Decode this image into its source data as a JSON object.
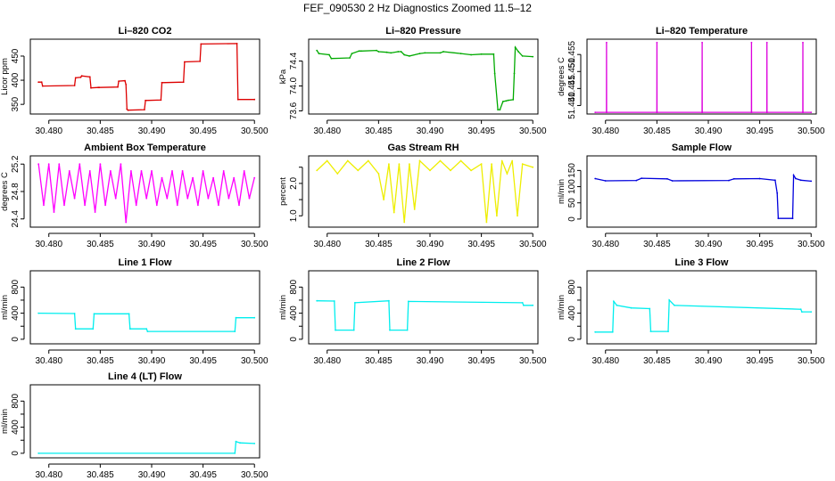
{
  "figure": {
    "title": "FEF_090530  2 Hz Diagnostics Zoomed 11.5–12"
  },
  "chart_data": [
    {
      "type": "line",
      "title": "Li–820 CO2",
      "ylabel": "Licor ppm",
      "color": "#dd0000",
      "xlim": [
        30.4782,
        30.5005
      ],
      "ylim": [
        330,
        485
      ],
      "xticks": [
        30.48,
        30.485,
        30.49,
        30.495,
        30.5
      ],
      "xtick_labels": [
        "30.480",
        "30.485",
        "30.490",
        "30.495",
        "30.500"
      ],
      "yticks": [
        350,
        400,
        450
      ],
      "ytick_labels": [
        "350",
        "400",
        "450"
      ],
      "series": [
        {
          "x": [
            30.479,
            30.4793,
            30.4794,
            30.4825,
            30.4826,
            30.4831,
            30.4832,
            30.484,
            30.4841,
            30.4848,
            30.4849,
            30.4867,
            30.4868,
            30.4874,
            30.4875,
            30.4876,
            30.4877,
            30.4893,
            30.4894,
            30.4909,
            30.491,
            30.4931,
            30.4932,
            30.4947,
            30.4948,
            30.4983,
            30.4984,
            30.5
          ],
          "y": [
            396,
            396,
            388,
            389,
            405,
            406,
            409,
            407,
            384,
            385,
            385,
            386,
            398,
            399,
            391,
            340,
            338,
            339,
            358,
            359,
            395,
            396,
            438,
            439,
            475,
            476,
            360,
            360
          ]
        }
      ]
    },
    {
      "type": "line",
      "title": "Li–820 Pressure",
      "ylabel": "kPa",
      "color": "#00aa00",
      "xlim": [
        30.4782,
        30.5005
      ],
      "ylim": [
        73.55,
        74.75
      ],
      "xticks": [
        30.48,
        30.485,
        30.49,
        30.495,
        30.5
      ],
      "xtick_labels": [
        "30.480",
        "30.485",
        "30.490",
        "30.495",
        "30.500"
      ],
      "yticks": [
        73.6,
        74.0,
        74.4
      ],
      "ytick_labels": [
        "73.6",
        "74.0",
        "74.4"
      ],
      "series": [
        {
          "x": [
            30.479,
            30.4792,
            30.4802,
            30.4804,
            30.4822,
            30.4824,
            30.4831,
            30.4833,
            30.4848,
            30.485,
            30.4858,
            30.4862,
            30.4869,
            30.4872,
            30.4875,
            30.488,
            30.489,
            30.4895,
            30.491,
            30.4913,
            30.493,
            30.494,
            30.495,
            30.4962,
            30.4963,
            30.4966,
            30.4968,
            30.4971,
            30.4974,
            30.4976,
            30.4981,
            30.4982,
            30.4983,
            30.4986,
            30.499,
            30.5
          ],
          "y": [
            74.57,
            74.52,
            74.5,
            74.44,
            74.45,
            74.52,
            74.56,
            74.56,
            74.57,
            74.55,
            74.54,
            74.53,
            74.55,
            74.55,
            74.5,
            74.48,
            74.52,
            74.53,
            74.53,
            74.55,
            74.52,
            74.5,
            74.51,
            74.51,
            74.2,
            73.62,
            73.62,
            73.75,
            73.76,
            73.77,
            73.78,
            74.2,
            74.62,
            74.55,
            74.48,
            74.47
          ]
        }
      ]
    },
    {
      "type": "line",
      "title": "Li–820 Temperature",
      "ylabel": "degrees C",
      "color": "#dd00dd",
      "xlim": [
        30.4782,
        30.5005
      ],
      "ylim": [
        51.4375,
        51.4595
      ],
      "xticks": [
        30.48,
        30.485,
        30.49,
        30.495,
        30.5
      ],
      "xtick_labels": [
        "30.480",
        "30.485",
        "30.490",
        "30.495",
        "30.500"
      ],
      "yticks": [
        51.44,
        51.445,
        51.45,
        51.455
      ],
      "ytick_labels": [
        "51.440",
        "51.445",
        "51.450",
        "51.455"
      ],
      "series": [
        {
          "x": [
            30.479,
            30.48009,
            30.4801,
            30.48011,
            30.48499,
            30.485,
            30.48501,
            30.48939,
            30.4894,
            30.48941,
            30.49419,
            30.4942,
            30.49421,
            30.49569,
            30.4957,
            30.49571,
            30.49919,
            30.4992,
            30.49921,
            30.5
          ],
          "y": [
            51.438,
            51.438,
            51.4585,
            51.438,
            51.438,
            51.4585,
            51.438,
            51.438,
            51.4585,
            51.438,
            51.438,
            51.4585,
            51.438,
            51.438,
            51.4585,
            51.438,
            51.438,
            51.4585,
            51.438,
            51.438
          ]
        }
      ]
    },
    {
      "type": "line",
      "title": "Ambient Box Temperature",
      "ylabel": "degrees C",
      "color": "#ff00ff",
      "xlim": [
        30.4782,
        30.5005
      ],
      "ylim": [
        24.28,
        25.32
      ],
      "xticks": [
        30.48,
        30.485,
        30.49,
        30.495,
        30.5
      ],
      "xtick_labels": [
        "30.480",
        "30.485",
        "30.490",
        "30.495",
        "30.500"
      ],
      "yticks": [
        24.4,
        24.8,
        25.2
      ],
      "ytick_labels": [
        "24.4",
        "24.8",
        "25.2"
      ],
      "series": [
        {
          "x": [
            30.479,
            30.4795,
            30.48,
            30.4805,
            30.481,
            30.4815,
            30.482,
            30.4825,
            30.483,
            30.4835,
            30.484,
            30.4845,
            30.485,
            30.4855,
            30.486,
            30.4865,
            30.487,
            30.4875,
            30.488,
            30.4885,
            30.489,
            30.4895,
            30.49,
            30.4905,
            30.491,
            30.4915,
            30.492,
            30.4925,
            30.493,
            30.4935,
            30.494,
            30.4945,
            30.495,
            30.4955,
            30.496,
            30.4965,
            30.497,
            30.4975,
            30.498,
            30.4985,
            30.499,
            30.4995,
            30.5
          ],
          "y": [
            25.2,
            24.6,
            25.2,
            24.5,
            25.2,
            24.6,
            25.1,
            24.7,
            25.2,
            24.6,
            25.1,
            24.5,
            25.2,
            24.6,
            25.1,
            24.7,
            25.2,
            24.35,
            25.1,
            24.6,
            25.1,
            24.7,
            25.1,
            24.6,
            25.0,
            24.7,
            25.1,
            24.6,
            25.1,
            24.7,
            25.0,
            24.6,
            25.1,
            24.7,
            25.0,
            24.6,
            25.1,
            24.7,
            25.0,
            24.6,
            25.1,
            24.7,
            25.0
          ]
        }
      ]
    },
    {
      "type": "line",
      "title": "Gas Stream RH",
      "ylabel": "percent",
      "color": "#eeee00",
      "xlim": [
        30.4782,
        30.5005
      ],
      "ylim": [
        0.65,
        2.85
      ],
      "xticks": [
        30.48,
        30.485,
        30.49,
        30.495,
        30.5
      ],
      "xtick_labels": [
        "30.480",
        "30.485",
        "30.490",
        "30.495",
        "30.500"
      ],
      "yticks": [
        1.0,
        1.5,
        2.0,
        2.5
      ],
      "ytick_labels": [
        "1.0",
        "",
        "2.0",
        ""
      ],
      "series": [
        {
          "x": [
            30.479,
            30.48,
            30.481,
            30.482,
            30.483,
            30.484,
            30.485,
            30.4855,
            30.486,
            30.4865,
            30.487,
            30.4875,
            30.488,
            30.4885,
            30.489,
            30.49,
            30.491,
            30.492,
            30.493,
            30.494,
            30.495,
            30.4955,
            30.496,
            30.4965,
            30.497,
            30.4975,
            30.498,
            30.4985,
            30.499,
            30.5
          ],
          "y": [
            2.4,
            2.7,
            2.3,
            2.7,
            2.4,
            2.7,
            2.3,
            1.5,
            2.6,
            1.1,
            2.6,
            0.8,
            2.6,
            1.2,
            2.7,
            2.4,
            2.7,
            2.4,
            2.7,
            2.4,
            2.6,
            0.8,
            2.6,
            1.0,
            2.7,
            2.3,
            2.7,
            1.0,
            2.6,
            2.5
          ]
        }
      ]
    },
    {
      "type": "line",
      "title": "Sample Flow",
      "ylabel": "ml/min",
      "color": "#0000dd",
      "xlim": [
        30.4782,
        30.5005
      ],
      "ylim": [
        -25,
        195
      ],
      "xticks": [
        30.48,
        30.485,
        30.49,
        30.495,
        30.5
      ],
      "xtick_labels": [
        "30.480",
        "30.485",
        "30.490",
        "30.495",
        "30.500"
      ],
      "yticks": [
        0,
        50,
        100,
        150
      ],
      "ytick_labels": [
        "0",
        "50",
        "100",
        "150"
      ],
      "series": [
        {
          "x": [
            30.479,
            30.48,
            30.483,
            30.4835,
            30.486,
            30.4865,
            30.492,
            30.4925,
            30.495,
            30.4965,
            30.4967,
            30.4968,
            30.4982,
            30.4983,
            30.4985,
            30.499,
            30.5
          ],
          "y": [
            125,
            118,
            119,
            126,
            124,
            118,
            119,
            124,
            125,
            120,
            80,
            2,
            2,
            135,
            125,
            120,
            117
          ]
        }
      ]
    },
    {
      "type": "line",
      "title": "Line 1 Flow",
      "ylabel": "ml/min",
      "color": "#00eeee",
      "xlim": [
        30.4782,
        30.5005
      ],
      "ylim": [
        -70,
        1050
      ],
      "xticks": [
        30.48,
        30.485,
        30.49,
        30.495,
        30.5
      ],
      "xtick_labels": [
        "30.480",
        "30.485",
        "30.490",
        "30.495",
        "30.500"
      ],
      "yticks": [
        0,
        200,
        400,
        600,
        800
      ],
      "ytick_labels": [
        "0",
        "",
        "400",
        "",
        "800"
      ],
      "series": [
        {
          "x": [
            30.479,
            30.4825,
            30.4826,
            30.4843,
            30.4844,
            30.4878,
            30.4879,
            30.4895,
            30.4896,
            30.4981,
            30.4982,
            30.5
          ],
          "y": [
            400,
            395,
            160,
            160,
            390,
            390,
            160,
            160,
            120,
            120,
            330,
            330
          ]
        }
      ]
    },
    {
      "type": "line",
      "title": "Line 2 Flow",
      "ylabel": "ml/min",
      "color": "#00eeee",
      "xlim": [
        30.4782,
        30.5005
      ],
      "ylim": [
        -70,
        1050
      ],
      "xticks": [
        30.48,
        30.485,
        30.49,
        30.495,
        30.5
      ],
      "xtick_labels": [
        "30.480",
        "30.485",
        "30.490",
        "30.495",
        "30.500"
      ],
      "yticks": [
        0,
        200,
        400,
        600,
        800
      ],
      "ytick_labels": [
        "0",
        "",
        "400",
        "",
        "800"
      ],
      "series": [
        {
          "x": [
            30.479,
            30.4807,
            30.4808,
            30.4826,
            30.4827,
            30.486,
            30.4861,
            30.4878,
            30.4879,
            30.499,
            30.4991,
            30.5
          ],
          "y": [
            590,
            585,
            140,
            140,
            560,
            590,
            140,
            140,
            580,
            560,
            520,
            520
          ]
        }
      ]
    },
    {
      "type": "line",
      "title": "Line 3 Flow",
      "ylabel": "ml/min",
      "color": "#00eeee",
      "xlim": [
        30.4782,
        30.5005
      ],
      "ylim": [
        -70,
        1050
      ],
      "xticks": [
        30.48,
        30.485,
        30.49,
        30.495,
        30.5
      ],
      "xtick_labels": [
        "30.480",
        "30.485",
        "30.490",
        "30.495",
        "30.500"
      ],
      "yticks": [
        0,
        200,
        400,
        600,
        800
      ],
      "ytick_labels": [
        "0",
        "",
        "400",
        "",
        "800"
      ],
      "series": [
        {
          "x": [
            30.479,
            30.4807,
            30.4808,
            30.4811,
            30.4825,
            30.4843,
            30.4844,
            30.4861,
            30.4862,
            30.4867,
            30.499,
            30.4991,
            30.5
          ],
          "y": [
            110,
            110,
            580,
            520,
            480,
            470,
            120,
            120,
            600,
            520,
            460,
            420,
            420
          ]
        }
      ]
    },
    {
      "type": "line",
      "title": "Line 4 (LT) Flow",
      "ylabel": "ml/min",
      "color": "#00eeee",
      "xlim": [
        30.4782,
        30.5005
      ],
      "ylim": [
        -70,
        1050
      ],
      "xticks": [
        30.48,
        30.485,
        30.49,
        30.495,
        30.5
      ],
      "xtick_labels": [
        "30.480",
        "30.485",
        "30.490",
        "30.495",
        "30.500"
      ],
      "yticks": [
        0,
        200,
        400,
        600,
        800
      ],
      "ytick_labels": [
        "0",
        "",
        "400",
        "",
        "800"
      ],
      "series": [
        {
          "x": [
            30.479,
            30.4981,
            30.4982,
            30.4986,
            30.5
          ],
          "y": [
            0,
            0,
            180,
            160,
            150
          ]
        }
      ]
    }
  ]
}
